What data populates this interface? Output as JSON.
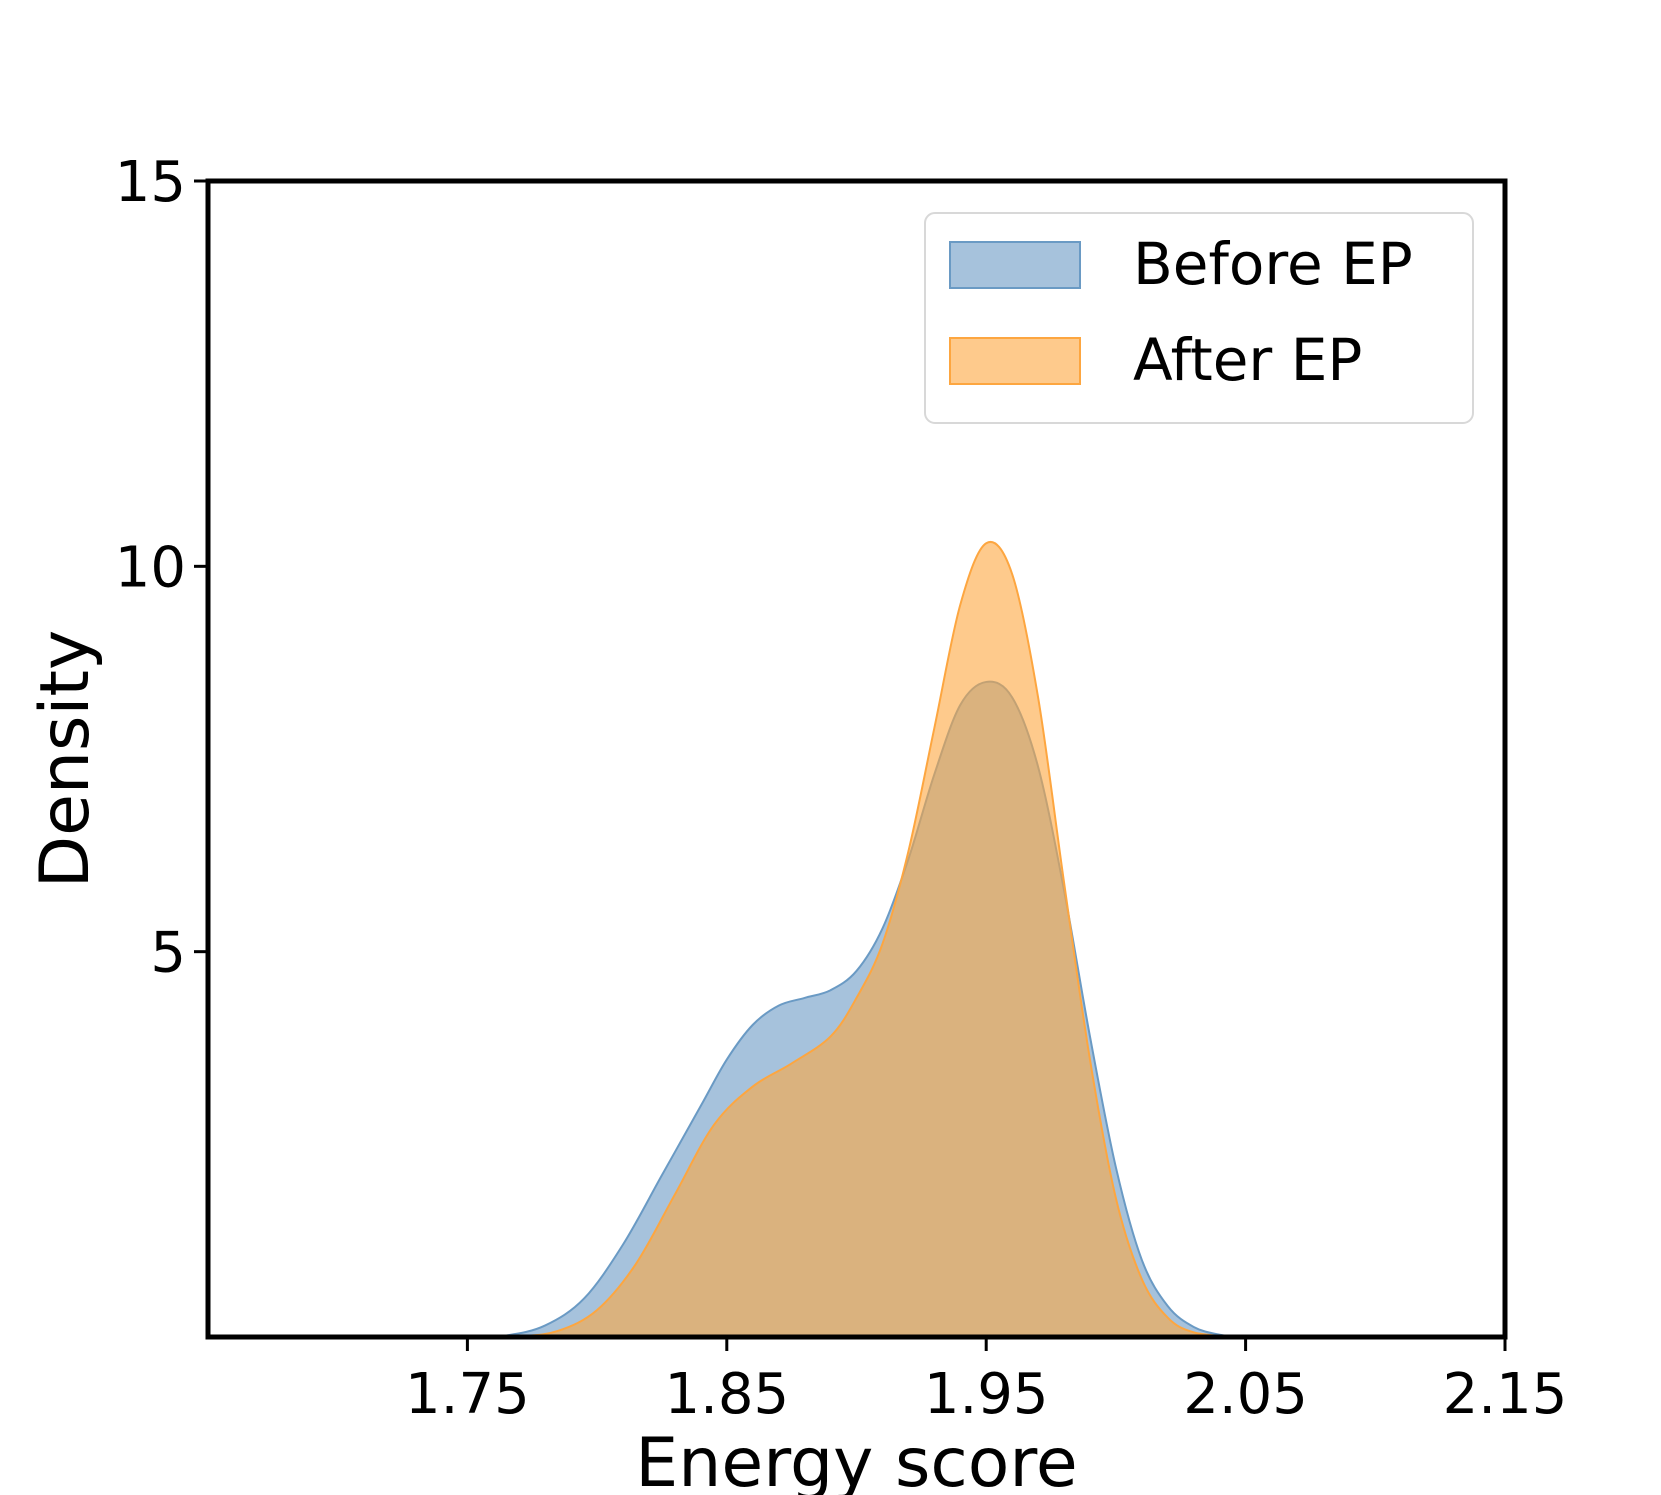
{
  "chart_data": {
    "type": "area",
    "xlabel": "Energy score",
    "ylabel": "Density",
    "xlim": [
      1.65,
      2.15
    ],
    "ylim": [
      0,
      15
    ],
    "xticks": [
      "1.75",
      "1.85",
      "1.95",
      "2.05",
      "2.15"
    ],
    "yticks": [
      "5",
      "10",
      "15"
    ],
    "xtick_values": [
      1.75,
      1.85,
      1.95,
      2.05,
      2.15
    ],
    "ytick_values": [
      5,
      10,
      15
    ],
    "grid": false,
    "legend_position": "top-right",
    "series": [
      {
        "name": "Before EP",
        "color": "#6A9AC4",
        "points": [
          [
            1.75,
            0.0
          ],
          [
            1.765,
            0.02
          ],
          [
            1.78,
            0.15
          ],
          [
            1.795,
            0.5
          ],
          [
            1.81,
            1.2
          ],
          [
            1.825,
            2.1
          ],
          [
            1.84,
            3.0
          ],
          [
            1.85,
            3.6
          ],
          [
            1.86,
            4.05
          ],
          [
            1.87,
            4.3
          ],
          [
            1.88,
            4.4
          ],
          [
            1.89,
            4.5
          ],
          [
            1.9,
            4.75
          ],
          [
            1.91,
            5.3
          ],
          [
            1.92,
            6.2
          ],
          [
            1.93,
            7.3
          ],
          [
            1.94,
            8.2
          ],
          [
            1.95,
            8.5
          ],
          [
            1.96,
            8.3
          ],
          [
            1.97,
            7.4
          ],
          [
            1.98,
            5.8
          ],
          [
            1.99,
            3.9
          ],
          [
            2.0,
            2.2
          ],
          [
            2.01,
            1.0
          ],
          [
            2.02,
            0.4
          ],
          [
            2.03,
            0.13
          ],
          [
            2.04,
            0.03
          ],
          [
            2.05,
            0.0
          ]
        ]
      },
      {
        "name": "After EP",
        "color": "#FDA640",
        "points": [
          [
            1.75,
            0.0
          ],
          [
            1.77,
            0.01
          ],
          [
            1.785,
            0.08
          ],
          [
            1.8,
            0.35
          ],
          [
            1.815,
            0.95
          ],
          [
            1.83,
            1.85
          ],
          [
            1.845,
            2.75
          ],
          [
            1.86,
            3.25
          ],
          [
            1.875,
            3.55
          ],
          [
            1.89,
            3.9
          ],
          [
            1.9,
            4.4
          ],
          [
            1.91,
            5.1
          ],
          [
            1.92,
            6.3
          ],
          [
            1.93,
            7.9
          ],
          [
            1.94,
            9.5
          ],
          [
            1.95,
            10.3
          ],
          [
            1.96,
            9.9
          ],
          [
            1.97,
            8.3
          ],
          [
            1.98,
            5.9
          ],
          [
            1.99,
            3.6
          ],
          [
            2.0,
            1.8
          ],
          [
            2.01,
            0.75
          ],
          [
            2.02,
            0.25
          ],
          [
            2.03,
            0.06
          ],
          [
            2.045,
            0.0
          ]
        ]
      }
    ]
  }
}
